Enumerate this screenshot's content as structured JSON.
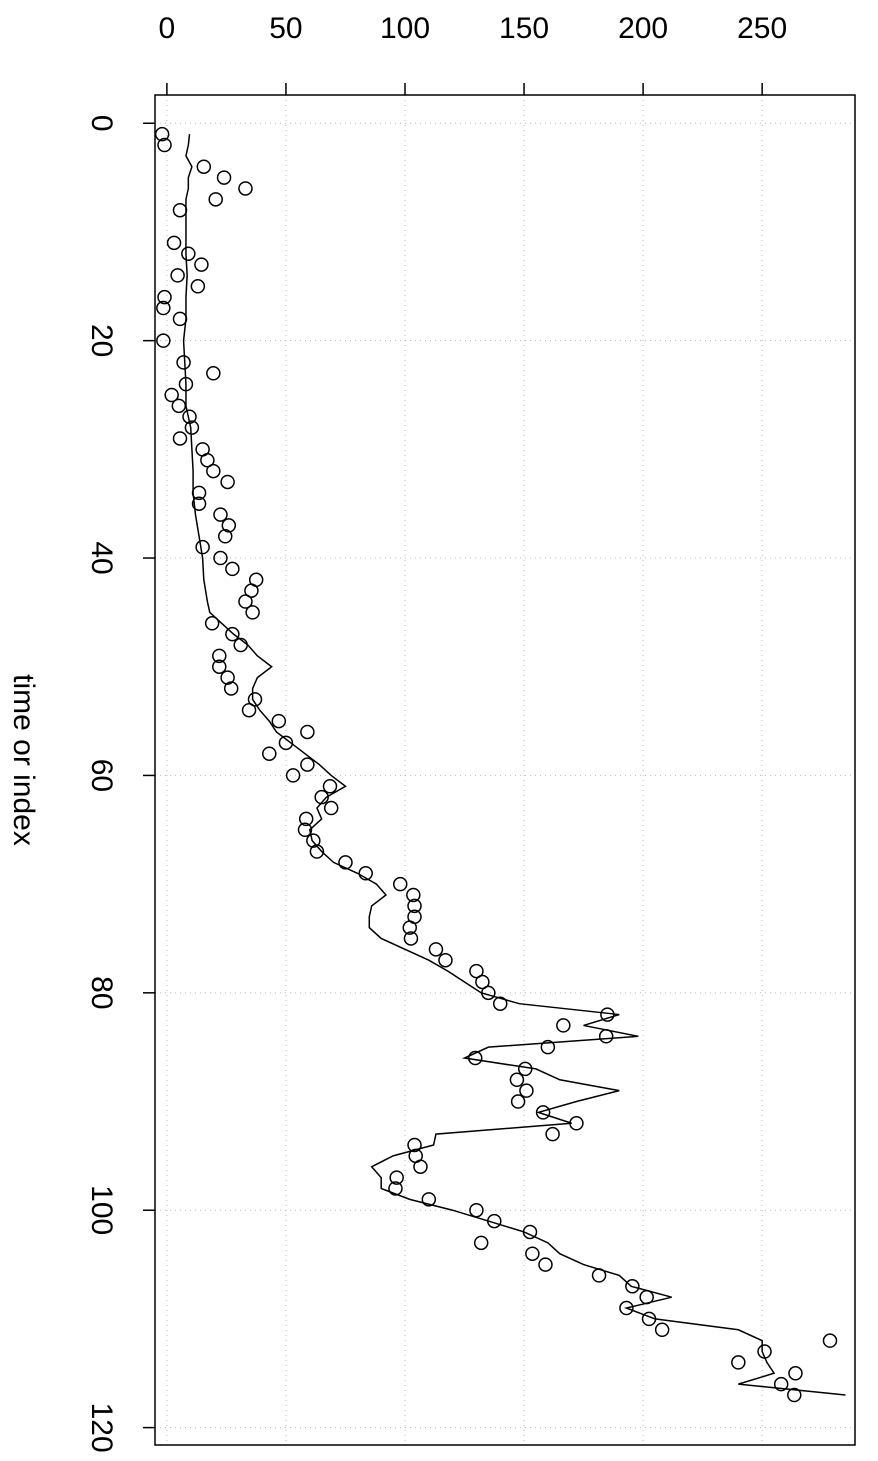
{
  "chart_data": {
    "type": "scatter",
    "xlabel": "time or index",
    "xlim": [
      -2.6,
      121.6
    ],
    "xticks": [
      0,
      20,
      40,
      60,
      80,
      100,
      120
    ],
    "ylim": [
      -5,
      289
    ],
    "yticks": [
      0,
      50,
      100,
      150,
      200,
      250
    ],
    "grid": true,
    "series": [
      {
        "style": "points",
        "color": "#000000",
        "x": [
          1,
          2,
          4,
          5,
          6,
          7,
          8,
          11,
          12,
          13,
          14,
          15,
          16,
          17,
          18,
          20,
          22,
          23,
          24,
          25,
          26,
          27,
          28,
          29,
          30,
          31,
          32,
          33,
          34,
          35,
          36,
          37,
          38,
          39,
          40,
          41,
          42,
          43,
          44,
          45,
          46,
          47,
          48,
          49,
          50,
          51,
          52,
          53,
          54,
          55,
          56,
          57,
          58,
          59,
          60,
          61,
          62,
          63,
          64,
          65,
          66,
          67,
          68,
          69,
          70,
          71,
          72,
          73,
          74,
          75,
          76,
          77,
          78,
          79,
          80,
          81,
          82,
          83,
          84,
          85,
          86,
          87,
          88,
          89,
          90,
          91,
          92,
          93,
          94,
          95,
          96,
          97,
          98,
          99,
          100,
          101,
          102,
          103,
          104,
          105,
          106,
          107,
          108,
          109,
          110,
          111,
          112,
          113,
          114,
          115,
          116,
          117
        ],
        "values": [
          -2,
          -1,
          15.5,
          24,
          33,
          20.5,
          5.5,
          3,
          9,
          14.5,
          4.5,
          13,
          -1,
          -1.5,
          5.5,
          -1.5,
          7,
          19.5,
          8,
          2,
          5,
          9.5,
          10.5,
          5.5,
          15,
          17,
          19.5,
          25.5,
          13.5,
          13.5,
          22.5,
          26,
          24.5,
          15,
          22.5,
          27.5,
          37.5,
          35.5,
          33,
          36,
          19,
          27.5,
          31,
          22,
          22,
          25.5,
          27,
          37,
          34.5,
          47,
          59,
          50,
          43,
          59,
          53,
          68.5,
          65,
          69,
          58.5,
          58,
          61.5,
          63,
          75,
          83.5,
          98,
          103.5,
          104,
          104,
          102,
          102.5,
          113,
          117,
          130,
          132.5,
          135,
          140,
          185,
          166.5,
          184.5,
          160,
          129.5,
          150.5,
          147,
          151,
          147.5,
          158,
          172,
          162,
          104,
          104.5,
          106.5,
          96.5,
          96,
          110,
          130,
          137.5,
          152.5,
          132,
          153.5,
          159,
          181.5,
          195.5,
          201.5,
          193,
          202.5,
          208,
          278.5,
          251,
          240,
          264,
          258,
          263.5
        ]
      },
      {
        "style": "line",
        "color": "#000000",
        "x": [
          1,
          2,
          3,
          4,
          5,
          6,
          7,
          8,
          10,
          12,
          14,
          16,
          18,
          20,
          22,
          24,
          26,
          28,
          30,
          32,
          34,
          36,
          38,
          40,
          42,
          44,
          45,
          46,
          47,
          48,
          49,
          50,
          51,
          52,
          53,
          54,
          55,
          56,
          57,
          58,
          59,
          60,
          61,
          62,
          63,
          64,
          65,
          66,
          67,
          68,
          69,
          70,
          71,
          72,
          73,
          74,
          75,
          76,
          77,
          78,
          79,
          80,
          81,
          82,
          83,
          84,
          85,
          86,
          87,
          88,
          89,
          90,
          91,
          92,
          93,
          94,
          95,
          96,
          97,
          98,
          99,
          100,
          101,
          102,
          103,
          104,
          105,
          106,
          107,
          108,
          109,
          110,
          111,
          112,
          113,
          114,
          115,
          116,
          117
        ],
        "values": [
          9.5,
          9,
          8,
          10.5,
          9,
          9,
          8,
          8,
          8,
          8,
          8.5,
          8,
          8,
          7,
          7.5,
          8,
          8,
          10,
          10.5,
          11,
          11,
          12,
          13.5,
          15,
          15.5,
          17,
          18,
          23,
          28,
          34,
          38,
          44,
          38,
          36,
          36,
          39,
          43,
          46,
          52,
          58,
          64,
          69,
          75,
          67,
          63,
          65,
          60,
          61,
          65,
          70,
          80,
          88,
          92,
          86,
          85,
          85,
          90,
          100,
          110,
          118,
          125,
          132,
          148,
          190,
          175,
          198,
          135,
          125,
          155,
          165,
          190,
          172,
          156,
          170,
          113,
          112,
          95,
          86,
          90,
          90,
          102,
          120,
          135,
          150,
          160,
          165,
          175,
          190,
          195,
          212,
          193,
          205,
          240,
          250,
          250,
          252,
          255,
          240,
          285
        ]
      }
    ]
  }
}
